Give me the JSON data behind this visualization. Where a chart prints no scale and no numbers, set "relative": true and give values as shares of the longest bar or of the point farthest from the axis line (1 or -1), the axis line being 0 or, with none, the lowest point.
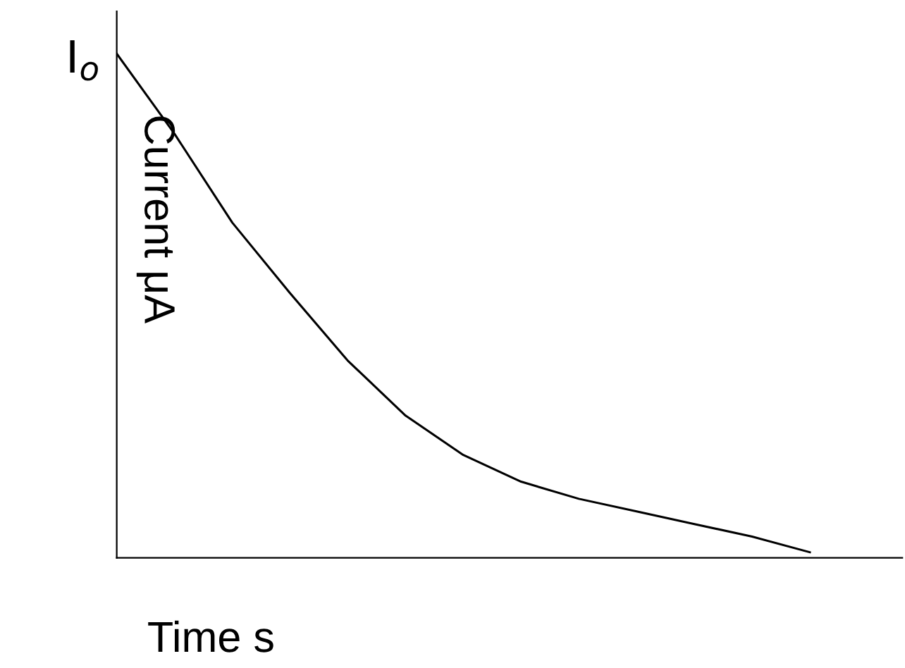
{
  "chart_data": {
    "type": "line",
    "relative": true,
    "xlabel": "Time s",
    "ylabel": "Current μA",
    "annotations": [
      "I$_{o}$"
    ],
    "categories": [
      null,
      null,
      null,
      null,
      null,
      null,
      null,
      null,
      null,
      null,
      null,
      null,
      null
    ],
    "series": [
      {
        "color": "#000000",
        "values": [
          1,
          0.841,
          0.665,
          0.525,
          0.391,
          0.282,
          0.204,
          0.151,
          0.117,
          0.092,
          0.067,
          0.042,
          0.011
        ]
      }
    ],
    "marker": "none",
    "line_style": "solid",
    "grid": false
  }
}
